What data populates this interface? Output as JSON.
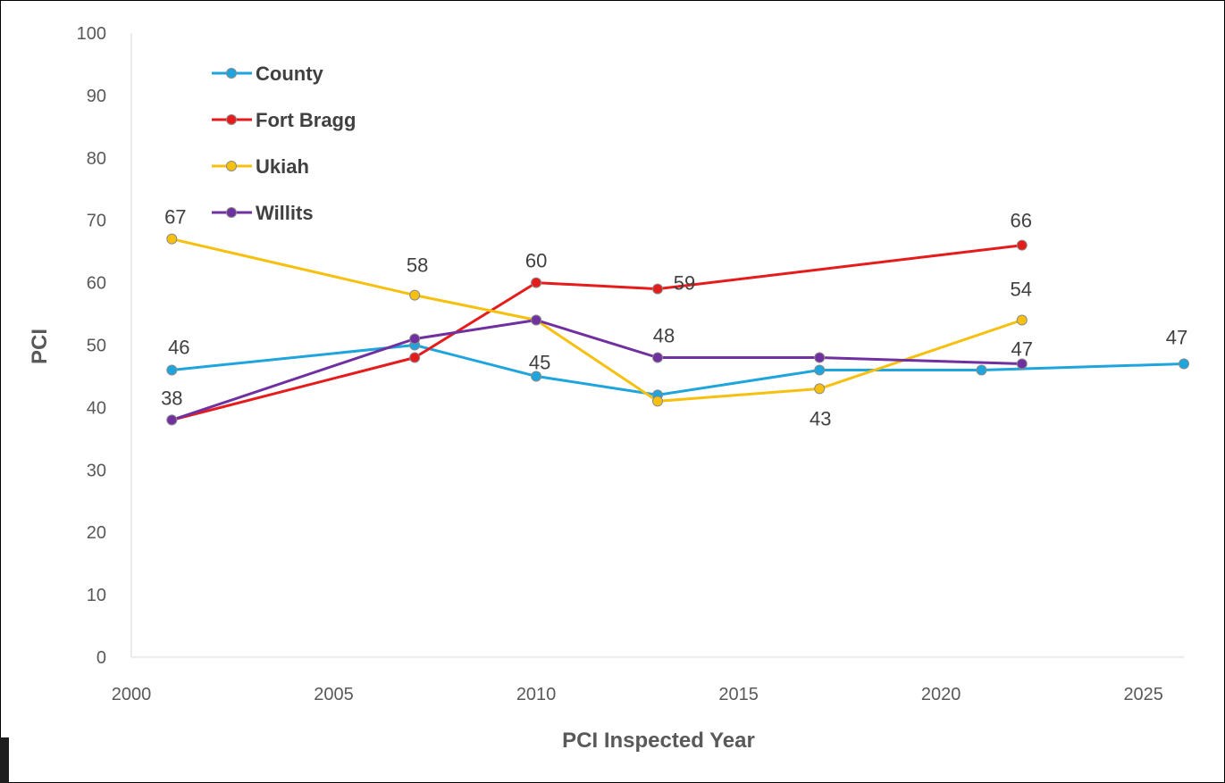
{
  "chart_data": {
    "type": "line",
    "title": "",
    "xlabel": "PCI Inspected Year",
    "ylabel": "PCI",
    "xlim": [
      2000,
      2026
    ],
    "ylim": [
      0,
      100
    ],
    "xticks": [
      2000,
      2005,
      2010,
      2015,
      2020,
      2025
    ],
    "yticks": [
      0,
      10,
      20,
      30,
      40,
      50,
      60,
      70,
      80,
      90,
      100
    ],
    "grid": false,
    "legend_position": "top-left",
    "series": [
      {
        "name": "County",
        "color": "#1ea5dd",
        "x": [
          2001,
          2007,
          2010,
          2013,
          2017,
          2021,
          2026
        ],
        "y": [
          46,
          50,
          45,
          42,
          46,
          46,
          47
        ],
        "labels": [
          {
            "i": 0,
            "text": "46"
          },
          {
            "i": 2,
            "text": "45"
          },
          {
            "i": 6,
            "text": "47"
          }
        ]
      },
      {
        "name": "Fort Bragg",
        "color": "#e61b1b",
        "x": [
          2001,
          2007,
          2010,
          2013,
          2022
        ],
        "y": [
          38,
          48,
          60,
          59,
          66
        ],
        "labels": [
          {
            "i": 2,
            "text": "60"
          },
          {
            "i": 3,
            "text": "59"
          },
          {
            "i": 4,
            "text": "66"
          }
        ]
      },
      {
        "name": "Ukiah",
        "color": "#f7c00f",
        "x": [
          2001,
          2007,
          2010,
          2013,
          2017,
          2022
        ],
        "y": [
          67,
          58,
          54,
          41,
          43,
          54
        ],
        "labels": [
          {
            "i": 0,
            "text": "67"
          },
          {
            "i": 1,
            "text": "58"
          },
          {
            "i": 4,
            "text": "43"
          },
          {
            "i": 5,
            "text": "54"
          }
        ]
      },
      {
        "name": "Willits",
        "color": "#7030a0",
        "x": [
          2001,
          2007,
          2010,
          2013,
          2017,
          2022
        ],
        "y": [
          38,
          51,
          54,
          48,
          48,
          47
        ],
        "labels": [
          {
            "i": 0,
            "text": "38"
          },
          {
            "i": 3,
            "text": "48"
          },
          {
            "i": 5,
            "text": "47"
          }
        ]
      }
    ]
  }
}
